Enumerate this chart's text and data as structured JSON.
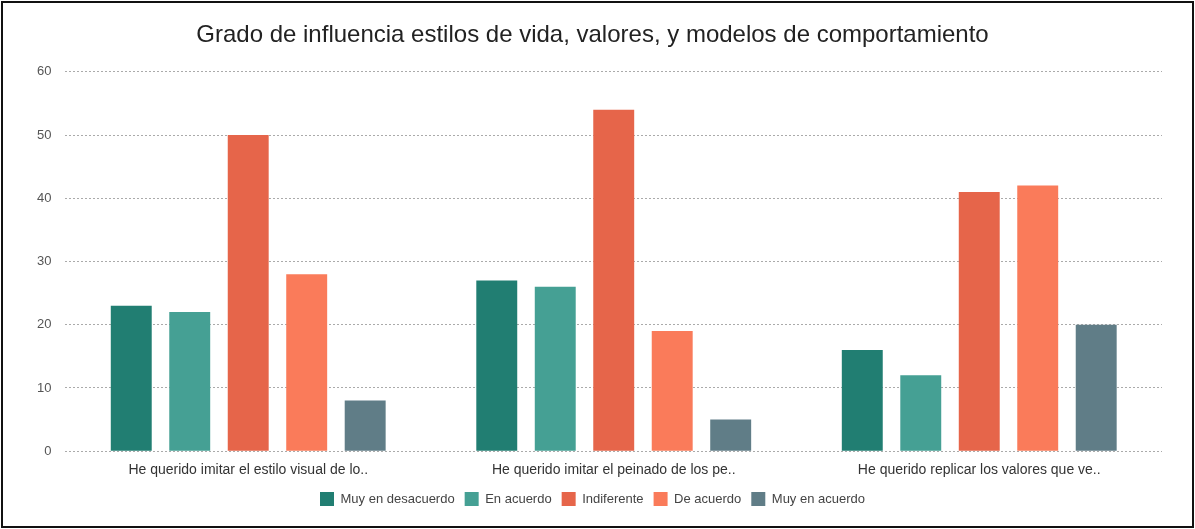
{
  "chart_data": {
    "type": "bar",
    "title": "Grado de influencia estilos de vida, valores, y modelos de comportamiento",
    "categories": [
      "He querido imitar el estilo visual de lo..",
      "He querido imitar el peinado de los pe..",
      "He querido replicar los valores que ve.."
    ],
    "series": [
      {
        "name": "Muy en desacuerdo",
        "color": "#217e72",
        "values": [
          23,
          27,
          16
        ]
      },
      {
        "name": "En acuerdo",
        "color": "#45a094",
        "values": [
          22,
          26,
          12
        ]
      },
      {
        "name": "Indiferente",
        "color": "#e6654a",
        "values": [
          50,
          54,
          41
        ]
      },
      {
        "name": "De acuerdo",
        "color": "#fa7b5a",
        "values": [
          28,
          19,
          42
        ]
      },
      {
        "name": "Muy en acuerdo",
        "color": "#607d87",
        "values": [
          8,
          5,
          20
        ]
      }
    ],
    "ylim": [
      0,
      60
    ],
    "yticks": [
      0,
      10,
      20,
      30,
      40,
      50,
      60
    ],
    "grid": "y",
    "legend": "bottom"
  }
}
